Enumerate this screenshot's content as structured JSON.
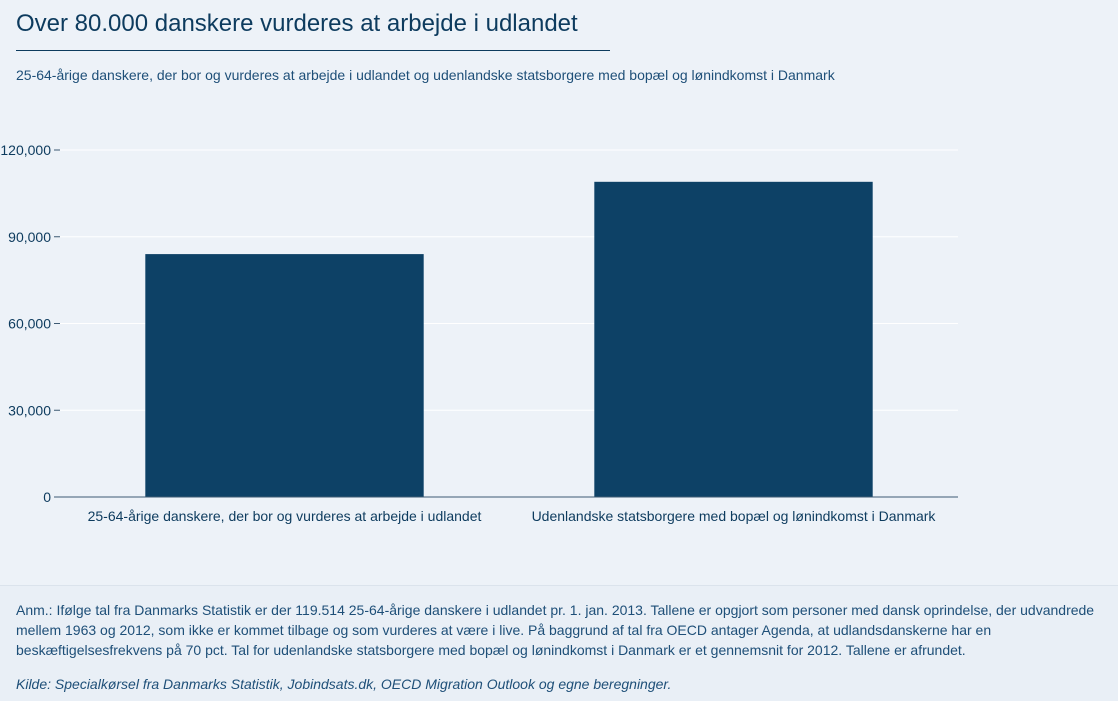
{
  "title": "Over 80.000 danskere vurderes at arbejde i udlandet",
  "subtitle": "25-64-årige danskere, der bor og vurderes at arbejde i udlandet og udenlandske statsborgere med bopæl og lønindkomst i Danmark",
  "note": "Anm.: Ifølge tal fra Danmarks Statistik er der 119.514 25-64-årige danskere i udlandet pr. 1. jan. 2013. Tallene er opgjort som personer med dansk oprindelse, der udvandrede mellem 1963 og 2012, som ikke er kommet tilbage og som vurderes at være i live. På baggrund af tal fra OECD antager Agenda, at udlandsdanskerne har en beskæftigelsesfrekvens på 70 pct.   Tal for udenlandske statsborgere med bopæl og lønindkomst i Danmark er et gennemsnit for 2012.  Tallene er afrundet.",
  "source": "Kilde: Specialkørsel fra Danmarks Statistik, Jobindsats.dk, OECD Migration Outlook og egne beregninger.",
  "colors": {
    "bar": "#0d4166",
    "axis": "#3d5a73",
    "grid": "#ffffff",
    "text": "#0d3b5e"
  },
  "chart_data": {
    "type": "bar",
    "categories": [
      "25-64-årige danskere, der bor og vurderes at arbejde i udlandet",
      "Udenlandske statsborgere med bopæl og lønindkomst i Danmark"
    ],
    "values": [
      84000,
      109000
    ],
    "title": "Over 80.000 danskere vurderes at arbejde i udlandet",
    "xlabel": "",
    "ylabel": "",
    "ylim": [
      0,
      120000
    ],
    "yticks": [
      0,
      30000,
      60000,
      90000,
      120000
    ],
    "ytick_labels": [
      "0",
      "30,000",
      "60,000",
      "90,000",
      "120,000"
    ],
    "grid": true,
    "legend": "none"
  }
}
